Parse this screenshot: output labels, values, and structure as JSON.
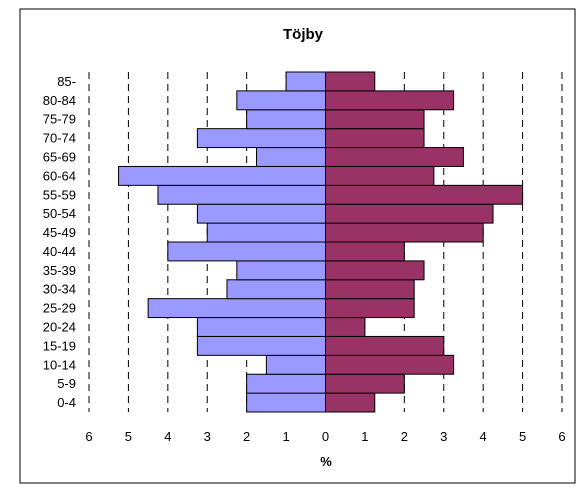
{
  "chart_data": {
    "type": "bar",
    "title": "Töjby",
    "xlabel": "%",
    "ylabel": "",
    "orientation": "horizontal-population-pyramid",
    "xlim": [
      -6,
      6
    ],
    "x_tick_values": [
      -6,
      -5,
      -4,
      -3,
      -2,
      -1,
      0,
      1,
      2,
      3,
      4,
      5,
      6
    ],
    "x_tick_labels": [
      "6",
      "5",
      "4",
      "3",
      "2",
      "1",
      "0",
      "1",
      "2",
      "3",
      "4",
      "5",
      "6"
    ],
    "grid": "vertical dashed lines",
    "legend": "none",
    "categories": [
      "0-4",
      "5-9",
      "10-14",
      "15-19",
      "20-24",
      "25-29",
      "30-34",
      "35-39",
      "40-44",
      "45-49",
      "50-54",
      "55-59",
      "60-64",
      "65-69",
      "70-74",
      "75-79",
      "80-84",
      "85-"
    ],
    "series": [
      {
        "side": "left",
        "color": "#9999ff",
        "values": [
          2.0,
          2.0,
          1.5,
          3.25,
          3.25,
          4.5,
          2.5,
          2.25,
          4.0,
          3.0,
          3.25,
          4.25,
          5.25,
          1.75,
          3.25,
          2.0,
          2.25,
          1.0
        ]
      },
      {
        "side": "right",
        "color": "#993366",
        "values": [
          1.25,
          2.0,
          3.25,
          3.0,
          1.0,
          2.25,
          2.25,
          2.5,
          2.0,
          4.0,
          4.25,
          5.0,
          2.75,
          3.5,
          2.5,
          2.5,
          3.25,
          1.25
        ]
      }
    ]
  }
}
